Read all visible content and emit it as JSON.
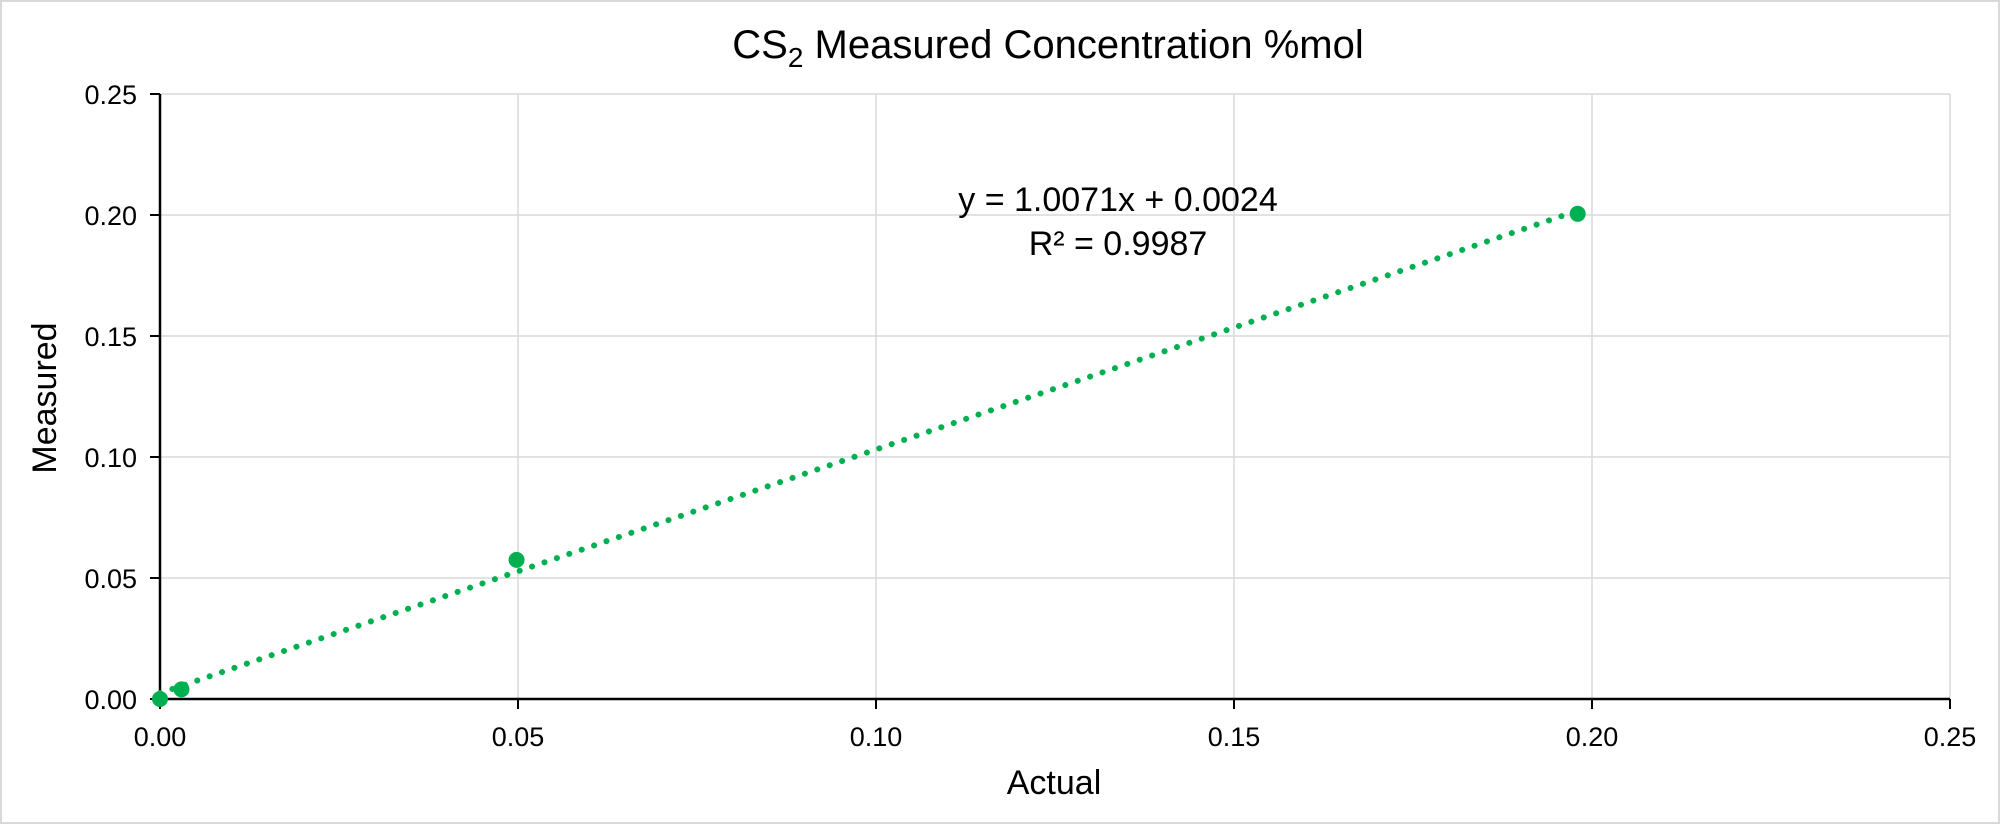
{
  "chart_data": {
    "type": "scatter",
    "title": {
      "main": "CS",
      "sub": "2",
      "rest": " Measured Concentration %mol"
    },
    "xlabel": "Actual",
    "ylabel": "Measured",
    "xlim": [
      0,
      0.25
    ],
    "ylim": [
      0,
      0.25
    ],
    "x_ticks": [
      0,
      0.05,
      0.1,
      0.15,
      0.2,
      0.25
    ],
    "y_ticks": [
      0,
      0.05,
      0.1,
      0.15,
      0.2,
      0.25
    ],
    "x_tick_labels": [
      "0.00",
      "0.05",
      "0.10",
      "0.15",
      "0.20",
      "0.25"
    ],
    "y_tick_labels": [
      "0.00",
      "0.05",
      "0.10",
      "0.15",
      "0.20",
      "0.25"
    ],
    "grid": true,
    "legend": "none",
    "color": "#00b050",
    "points": [
      {
        "x": 0.0,
        "y": 0.0
      },
      {
        "x": 0.003,
        "y": 0.004
      },
      {
        "x": 0.0498,
        "y": 0.0575
      },
      {
        "x": 0.198,
        "y": 0.2005
      }
    ],
    "trendline": {
      "type": "linear",
      "slope": 1.0071,
      "intercept": 0.0024,
      "x_range": [
        0,
        0.198
      ],
      "equation_label": "y = 1.0071x + 0.0024",
      "r2_label": "R² = 0.9987"
    }
  }
}
